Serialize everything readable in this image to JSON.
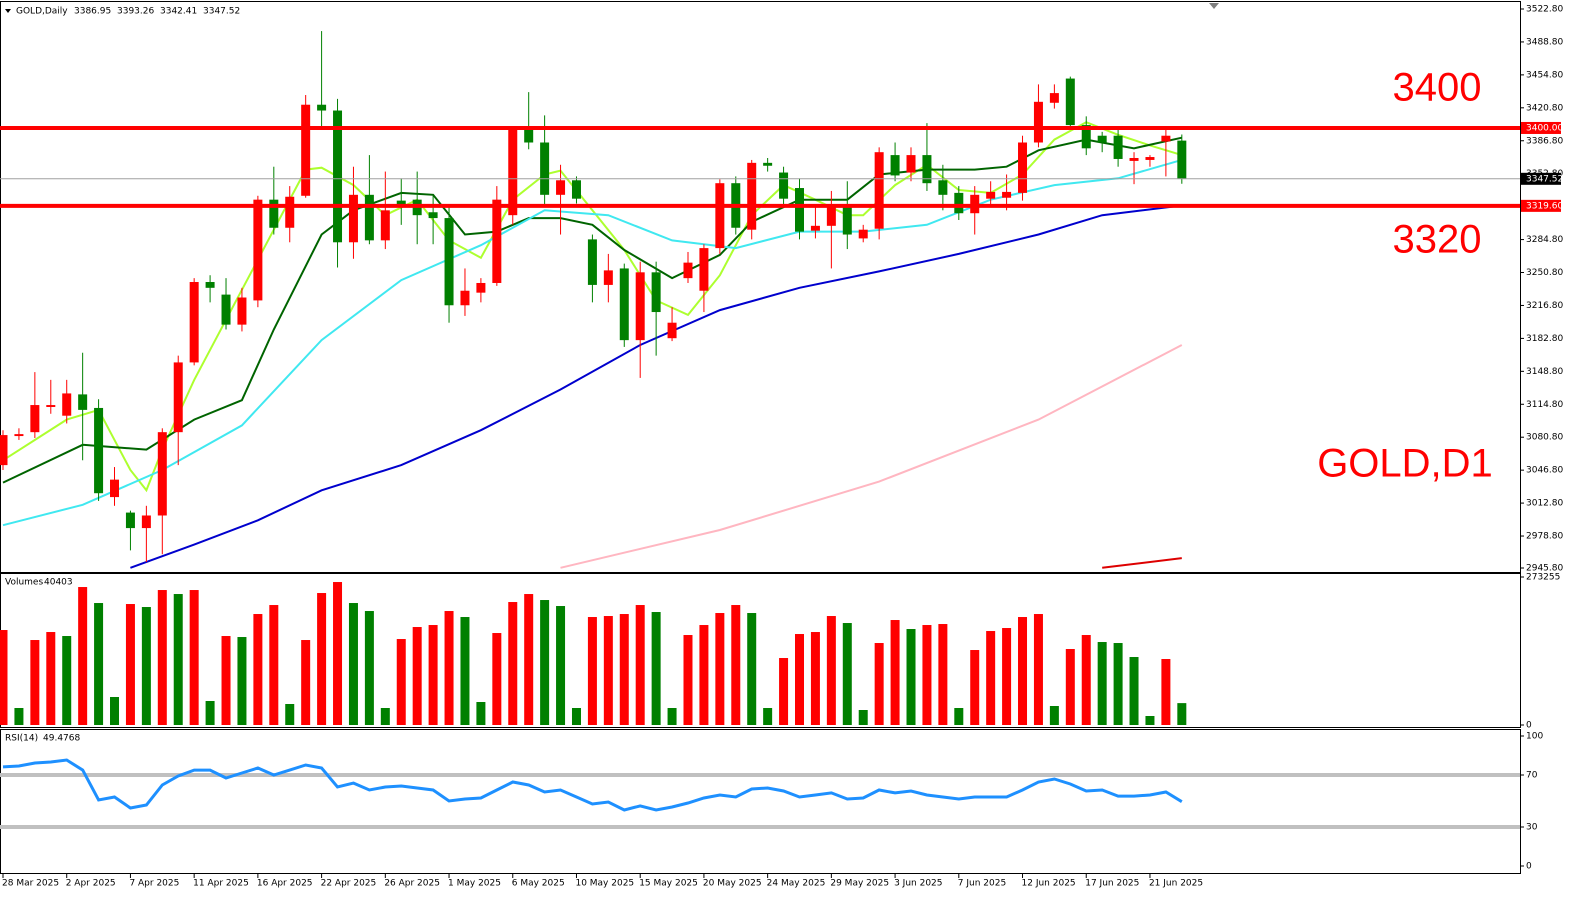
{
  "chart_data": [
    {
      "type": "candlestick",
      "title": "GOLD,Daily",
      "categories": [
        "28 Mar 2025",
        null,
        null,
        null,
        "2 Apr 2025",
        null,
        null,
        null,
        "7 Apr 2025",
        null,
        null,
        null,
        "11 Apr 2025",
        null,
        null,
        null,
        "16 Apr 2025",
        null,
        null,
        null,
        "22 Apr 2025",
        null,
        null,
        null,
        "26 Apr 2025",
        null,
        null,
        null,
        "1 May 2025",
        null,
        null,
        null,
        "6 May 2025",
        null,
        null,
        null,
        "10 May 2025",
        null,
        null,
        null,
        "15 May 2025",
        null,
        null,
        null,
        "20 May 2025",
        null,
        null,
        null,
        "24 May 2025",
        null,
        null,
        null,
        "29 May 2025",
        null,
        null,
        null,
        "3 Jun 2025",
        null,
        null,
        null,
        "7 Jun 2025",
        null,
        null,
        null,
        "12 Jun 2025",
        null,
        null,
        null,
        "17 Jun 2025",
        null,
        null,
        null,
        "21 Jun 2025",
        null,
        null
      ],
      "open": [
        3052,
        3082,
        3086,
        3112,
        3103,
        3125,
        3111,
        3019,
        3003,
        2987,
        3000,
        3086,
        3158,
        3241,
        3228,
        3197,
        3222,
        3326,
        3297,
        3330,
        3424,
        3418,
        3282,
        3331,
        3284,
        3325,
        3326,
        3313,
        3307,
        3217,
        3230,
        3240,
        3310,
        3398,
        3385,
        3331,
        3346,
        3285,
        3238,
        3255,
        3181,
        3251,
        3183,
        3245,
        3232,
        3276,
        3343,
        3295,
        3364,
        3354,
        3338,
        3294,
        3299,
        3320,
        3286,
        3296,
        3372,
        3354,
        3372,
        3346,
        3333,
        3312,
        3327,
        3328,
        3333,
        3385,
        3426,
        3451,
        3403,
        3392,
        3392,
        3366,
        3367,
        3386,
        3386.95
      ],
      "high": [
        3088,
        3090,
        3148,
        3140,
        3140,
        3168,
        3120,
        3050,
        3005,
        3010,
        3090,
        3165,
        3245,
        3248,
        3245,
        3235,
        3330,
        3360,
        3340,
        3434,
        3500,
        3430,
        3360,
        3372,
        3355,
        3348,
        3355,
        3330,
        3320,
        3255,
        3245,
        3340,
        3402,
        3437,
        3413,
        3362,
        3350,
        3290,
        3270,
        3260,
        3262,
        3262,
        3215,
        3272,
        3280,
        3347,
        3350,
        3367,
        3369,
        3360,
        3348,
        3320,
        3335,
        3345,
        3300,
        3380,
        3385,
        3380,
        3405,
        3362,
        3340,
        3340,
        3345,
        3352,
        3392,
        3445,
        3445,
        3453,
        3412,
        3396,
        3398,
        3375,
        3372,
        3398,
        3393.26
      ],
      "low": [
        3047,
        3078,
        3080,
        3105,
        3095,
        3057,
        3015,
        3010,
        2964,
        2952,
        2960,
        3052,
        3155,
        3220,
        3192,
        3190,
        3215,
        3290,
        3282,
        3328,
        3400,
        3256,
        3265,
        3280,
        3275,
        3300,
        3280,
        3280,
        3199,
        3206,
        3220,
        3237,
        3300,
        3378,
        3318,
        3290,
        3322,
        3220,
        3220,
        3174,
        3142,
        3165,
        3180,
        3240,
        3210,
        3270,
        3290,
        3285,
        3355,
        3320,
        3285,
        3286,
        3255,
        3275,
        3282,
        3285,
        3345,
        3345,
        3335,
        3315,
        3305,
        3290,
        3318,
        3315,
        3325,
        3380,
        3420,
        3400,
        3372,
        3375,
        3360,
        3342,
        3360,
        3350,
        3342.41
      ],
      "close": [
        3083,
        3084,
        3114,
        3114,
        3126,
        3109,
        3023,
        3037,
        2987,
        3000,
        3086,
        3158,
        3241,
        3235,
        3197,
        3225,
        3326,
        3297,
        3329,
        3424,
        3418,
        3282,
        3331,
        3284,
        3315,
        3320,
        3310,
        3307,
        3217,
        3232,
        3240,
        3326,
        3398,
        3385,
        3331,
        3346,
        3327,
        3238,
        3253,
        3181,
        3251,
        3210,
        3199,
        3261,
        3276,
        3343,
        3297,
        3364,
        3361,
        3327,
        3293,
        3299,
        3320,
        3290,
        3295,
        3375,
        3351,
        3372,
        3343,
        3331,
        3312,
        3331,
        3334,
        3334,
        3385,
        3427,
        3436,
        3403,
        3379,
        3385,
        3368,
        3369,
        3370,
        3392,
        3347.52
      ],
      "up_color": "#ff0000",
      "down_color": "#008000",
      "ylim": [
        2945.8,
        3522.8
      ],
      "yticks": [
        {
          "value": 3522.8,
          "label": "3522.80"
        },
        {
          "value": 3488.8,
          "label": "3488.80"
        },
        {
          "value": 3454.8,
          "label": "3454.80"
        },
        {
          "value": 3420.8,
          "label": "3420.80"
        },
        {
          "value": 3386.8,
          "label": "3386.80"
        },
        {
          "value": 3352.8,
          "label": "3352.80"
        },
        {
          "value": 3284.8,
          "label": "3284.80"
        },
        {
          "value": 3250.8,
          "label": "3250.80"
        },
        {
          "value": 3216.8,
          "label": "3216.80"
        },
        {
          "value": 3182.8,
          "label": "3182.80"
        },
        {
          "value": 3148.8,
          "label": "3148.80"
        },
        {
          "value": 3114.8,
          "label": "3114.80"
        },
        {
          "value": 3080.8,
          "label": "3080.80"
        },
        {
          "value": 3046.8,
          "label": "3046.80"
        },
        {
          "value": 3012.8,
          "label": "3012.80"
        },
        {
          "value": 2978.8,
          "label": "2978.80"
        },
        {
          "value": 2945.8,
          "label": "2945.80"
        }
      ],
      "overlays": [
        {
          "color": "#adff2f",
          "x": [
            0,
            4,
            6,
            8,
            9,
            10,
            12,
            14,
            16,
            17,
            19,
            20,
            22,
            24,
            26,
            28,
            30,
            32,
            34,
            35,
            37,
            39,
            41,
            43,
            45,
            47,
            49,
            51,
            53,
            54,
            56,
            58,
            60,
            62,
            64,
            66,
            68,
            70,
            72,
            74
          ],
          "values": [
            3057,
            3099,
            3109,
            3047,
            3026,
            3068,
            3140,
            3202,
            3264,
            3295,
            3357,
            3359,
            3341,
            3310,
            3326,
            3284,
            3266,
            3326,
            3352,
            3356,
            3315,
            3274,
            3222,
            3207,
            3248,
            3310,
            3341,
            3326,
            3310,
            3310,
            3341,
            3362,
            3336,
            3333,
            3352,
            3388,
            3406,
            3393,
            3382,
            3372
          ]
        },
        {
          "color": "#006400",
          "x": [
            0,
            5,
            9,
            12,
            15,
            17,
            20,
            22,
            25,
            27,
            29,
            31,
            33,
            35,
            37,
            39,
            42,
            45,
            47,
            50,
            53,
            55,
            58,
            61,
            63,
            65,
            68,
            71,
            74
          ],
          "values": [
            3034,
            3073,
            3068,
            3099,
            3119,
            3192,
            3290,
            3315,
            3333,
            3331,
            3290,
            3293,
            3307,
            3307,
            3300,
            3274,
            3245,
            3269,
            3303,
            3326,
            3326,
            3352,
            3357,
            3357,
            3360,
            3377,
            3388,
            3379,
            3390
          ]
        },
        {
          "color": "#40e8f0",
          "x": [
            0,
            5,
            10,
            15,
            20,
            25,
            30,
            34,
            38,
            42,
            46,
            50,
            54,
            58,
            62,
            66,
            70,
            74
          ],
          "values": [
            2990,
            3011,
            3047,
            3093,
            3181,
            3243,
            3279,
            3315,
            3310,
            3284,
            3276,
            3293,
            3293,
            3300,
            3326,
            3341,
            3348,
            3367
          ]
        },
        {
          "color": "#0000cd",
          "x": [
            8,
            12,
            16,
            20,
            25,
            30,
            35,
            40,
            45,
            50,
            55,
            60,
            65,
            69,
            74
          ],
          "values": [
            2946,
            2970,
            2995,
            3026,
            3052,
            3088,
            3130,
            3176,
            3212,
            3235,
            3252,
            3270,
            3290,
            3310,
            3320
          ]
        },
        {
          "color": "#ffb6c1",
          "x": [
            35,
            45,
            55,
            65,
            74
          ],
          "values": [
            2946,
            2985,
            3035,
            3099,
            3176
          ]
        },
        {
          "color": "#dd0000",
          "x": [
            69,
            74
          ],
          "values": [
            2946,
            2956
          ]
        }
      ],
      "levels": [
        {
          "value": 3400,
          "label": "3400.00"
        },
        {
          "value": 3319.6,
          "label": "3319.60"
        }
      ],
      "level_color": "#ff0000",
      "annotations": [
        "3400",
        "3320",
        "GOLD,D1"
      ]
    },
    {
      "type": "bar",
      "title": "Volumes",
      "values": [
        175370,
        31382,
        156910,
        171678,
        164294,
        254748,
        225212,
        51688,
        223366,
        217828,
        249210,
        241826,
        249210,
        44304,
        164294,
        162448,
        204906,
        221520,
        38766,
        156910,
        243672,
        263978,
        225212,
        210444,
        31382,
        158756,
        180908,
        184600,
        210444,
        199368,
        42458,
        169832,
        227058,
        241826,
        230750,
        219674,
        31382,
        199368,
        201214,
        204906,
        221520,
        208598,
        31382,
        166140,
        184600,
        206752,
        221520,
        206752,
        31382,
        123682,
        167986,
        171678,
        201214,
        188292,
        27690,
        151372,
        193830,
        177216,
        184600,
        186446,
        31382,
        138450,
        173524,
        179062,
        199368,
        204906,
        35074,
        140296,
        166140,
        153218,
        151372,
        125528,
        16614,
        121836,
        40403
      ],
      "up_color": "#ff0000",
      "down_color": "#008000",
      "ylim": [
        0,
        273255
      ],
      "yticks": [
        273255,
        0
      ]
    },
    {
      "type": "line",
      "title": "RSI(14)",
      "values": [
        76.2,
        76.9,
        79.2,
        80.0,
        81.5,
        73.8,
        50.8,
        53.1,
        44.6,
        46.9,
        62.3,
        69.2,
        73.8,
        73.8,
        67.7,
        71.5,
        75.4,
        70.0,
        73.8,
        77.7,
        75.4,
        60.8,
        63.8,
        58.5,
        60.8,
        61.5,
        60.0,
        58.5,
        50.0,
        51.5,
        52.3,
        58.5,
        64.6,
        62.3,
        56.9,
        58.5,
        53.1,
        47.7,
        49.2,
        43.1,
        46.2,
        43.1,
        45.4,
        48.5,
        52.3,
        54.6,
        53.1,
        59.2,
        60.0,
        57.7,
        53.1,
        54.6,
        56.2,
        51.5,
        52.3,
        58.5,
        56.2,
        57.7,
        54.6,
        53.1,
        51.5,
        53.1,
        53.1,
        53.1,
        58.5,
        64.6,
        66.9,
        63.1,
        57.7,
        58.5,
        53.8,
        53.8,
        54.6,
        56.9,
        49.4768
      ],
      "color": "#1e90ff",
      "ylim": [
        0,
        100
      ],
      "yticks": [
        100,
        70,
        30,
        0
      ],
      "levels": [
        70,
        30
      ],
      "level_color": "#c0c0c0"
    }
  ]
}
